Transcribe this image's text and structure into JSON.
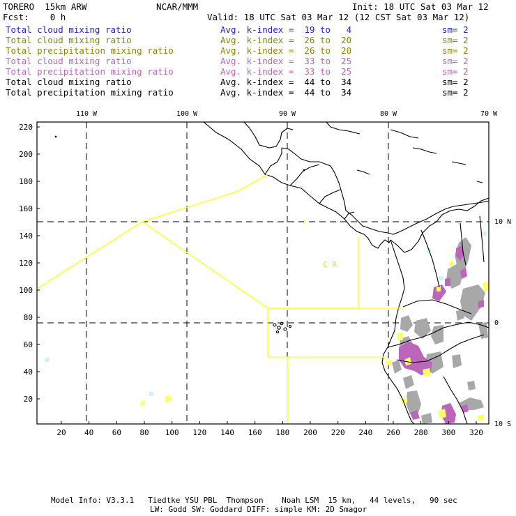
{
  "header": {
    "model": "TORERO  15km ARW",
    "org": "NCAR/MMM",
    "init": "Init: 18 UTC Sat 03 Mar 12",
    "fcst": "Fcst:    0 h",
    "valid": "Valid: 18 UTC Sat 03 Mar 12 (12 CST Sat 03 Mar 12)"
  },
  "legend_rows": [
    {
      "field": "Total cloud mixing ratio",
      "index": "Avg. k-index =  19 to   4",
      "sm": "sm= 2",
      "color": "#2222cc"
    },
    {
      "field": "Total cloud mixing ratio",
      "index": "Avg. k-index =  26 to  20",
      "sm": "sm= 2",
      "color": "#888800"
    },
    {
      "field": "Total precipitation mixing ratio",
      "index": "Avg. k-index =  26 to  20",
      "sm": "sm= 2",
      "color": "#888800"
    },
    {
      "field": "Total cloud mixing ratio",
      "index": "Avg. k-index =  33 to  25",
      "sm": "sm= 2",
      "color": "#bb66bb"
    },
    {
      "field": "Total precipitation mixing ratio",
      "index": "Avg. k-index =  33 to  25",
      "sm": "sm= 2",
      "color": "#bb66bb"
    },
    {
      "field": "Total cloud mixing ratio",
      "index": "Avg. k-index =  44 to  34",
      "sm": "sm= 2",
      "color": "#000000"
    },
    {
      "field": "Total precipitation mixing ratio",
      "index": "Avg. k-index =  44 to  34",
      "sm": "sm= 2",
      "color": "#000000"
    }
  ],
  "map": {
    "top_lon_labels": [
      "110 W",
      "100 W",
      "90 W",
      "80 W",
      "70 W"
    ],
    "right_lat_labels": [
      "10 N",
      "0",
      "10 S"
    ],
    "x_ticks": [
      "20",
      "40",
      "60",
      "80",
      "100",
      "120",
      "140",
      "160",
      "180",
      "200",
      "220",
      "240",
      "260",
      "280",
      "300",
      "320"
    ],
    "y_ticks": [
      "20",
      "40",
      "60",
      "80",
      "100",
      "120",
      "140",
      "160",
      "180",
      "200",
      "220"
    ],
    "annotation": "C  R",
    "colors": {
      "frame": "#000000",
      "coastline": "#000000",
      "domain_box": "#ffff33",
      "grid": "#000000",
      "cloud_light": "#ccf2ff",
      "cloud_yellow": "#ffff88",
      "precip_yellow": "#ffff55",
      "purple": "#bb66bb",
      "gray": "#a8a8a8"
    }
  },
  "footer": {
    "line1": "Model Info: V3.3.1   Tiedtke YSU PBL  Thompson    Noah LSM  15 km,   44 levels,   90 sec",
    "line2": "LW: Godd SW: Goddard DIFF: simple KM: 2D Smagor"
  }
}
